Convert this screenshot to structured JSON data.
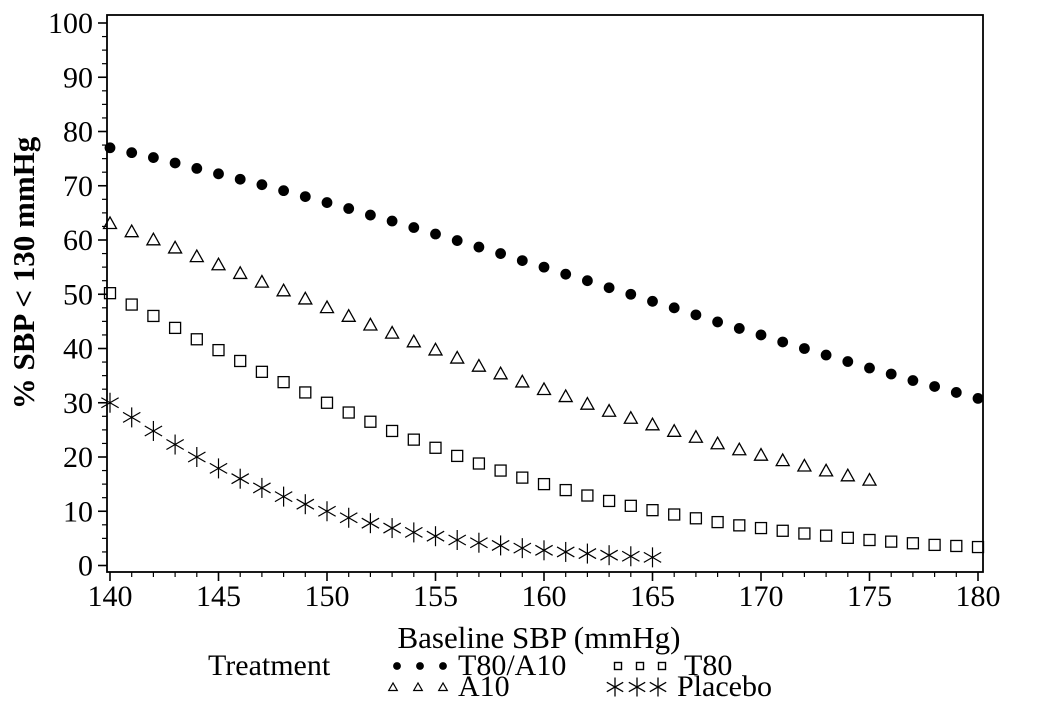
{
  "figure": {
    "background": "#ffffff",
    "foreground": "#000000"
  },
  "axes": {
    "y_title": "% SBP < 130 mmHg",
    "x_title": "Baseline SBP (mmHg)"
  },
  "legend": {
    "title": "Treatment",
    "entries": [
      {
        "label": "T80/A10",
        "marker": "filled-circle"
      },
      {
        "label": "T80",
        "marker": "open-square"
      },
      {
        "label": "A10",
        "marker": "open-triangle"
      },
      {
        "label": "Placebo",
        "marker": "asterisk"
      }
    ]
  },
  "chart_data": {
    "type": "scatter",
    "title": "",
    "xlabel": "Baseline SBP (mmHg)",
    "ylabel": "% SBP < 130 mmHg",
    "xlim": [
      140,
      180
    ],
    "ylim": [
      0,
      100
    ],
    "x_major_ticks": [
      140,
      145,
      150,
      155,
      160,
      165,
      170,
      175,
      180
    ],
    "x_minor_step": 1,
    "y_major_ticks": [
      0,
      10,
      20,
      30,
      40,
      50,
      60,
      70,
      80,
      90,
      100
    ],
    "y_minor_step": 2.5,
    "grid": false,
    "legend_position": "bottom",
    "marker_color": "#000000",
    "series": [
      {
        "name": "T80/A10",
        "marker": "filled-circle",
        "x_start": 140,
        "x_step": 1,
        "values": [
          77.0,
          76.1,
          75.2,
          74.2,
          73.2,
          72.2,
          71.2,
          70.2,
          69.1,
          68.0,
          66.9,
          65.8,
          64.6,
          63.5,
          62.3,
          61.1,
          59.9,
          58.7,
          57.5,
          56.2,
          55.0,
          53.7,
          52.5,
          51.2,
          50.0,
          48.7,
          47.5,
          46.2,
          44.9,
          43.7,
          42.5,
          41.2,
          40.0,
          38.8,
          37.6,
          36.4,
          35.3,
          34.1,
          33.0,
          31.9,
          30.8
        ]
      },
      {
        "name": "A10",
        "marker": "open-triangle",
        "x_start": 140,
        "x_step": 1,
        "values": [
          63.0,
          61.5,
          60.0,
          58.5,
          56.9,
          55.4,
          53.8,
          52.2,
          50.6,
          49.1,
          47.5,
          45.9,
          44.3,
          42.8,
          41.2,
          39.7,
          38.2,
          36.7,
          35.3,
          33.8,
          32.4,
          31.1,
          29.7,
          28.4,
          27.1,
          25.9,
          24.7,
          23.6,
          22.4,
          21.3,
          20.3,
          19.3,
          18.3,
          17.4,
          16.5,
          15.7
        ]
      },
      {
        "name": "T80",
        "marker": "open-square",
        "x_start": 140,
        "x_step": 1,
        "values": [
          50.2,
          48.1,
          46.0,
          43.8,
          41.7,
          39.7,
          37.7,
          35.7,
          33.8,
          31.9,
          30.0,
          28.2,
          26.5,
          24.8,
          23.2,
          21.7,
          20.2,
          18.8,
          17.5,
          16.2,
          15.0,
          13.9,
          12.9,
          11.9,
          11.0,
          10.2,
          9.4,
          8.7,
          8.0,
          7.4,
          6.9,
          6.4,
          5.9,
          5.5,
          5.1,
          4.7,
          4.4,
          4.1,
          3.8,
          3.6,
          3.4
        ]
      },
      {
        "name": "Placebo",
        "marker": "asterisk",
        "x_start": 140,
        "x_step": 1,
        "values": [
          30.0,
          27.3,
          24.8,
          22.3,
          20.0,
          17.9,
          16.0,
          14.3,
          12.7,
          11.3,
          10.0,
          8.8,
          7.8,
          6.9,
          6.1,
          5.4,
          4.7,
          4.2,
          3.7,
          3.2,
          2.8,
          2.5,
          2.2,
          1.9,
          1.7,
          1.5
        ]
      }
    ]
  }
}
